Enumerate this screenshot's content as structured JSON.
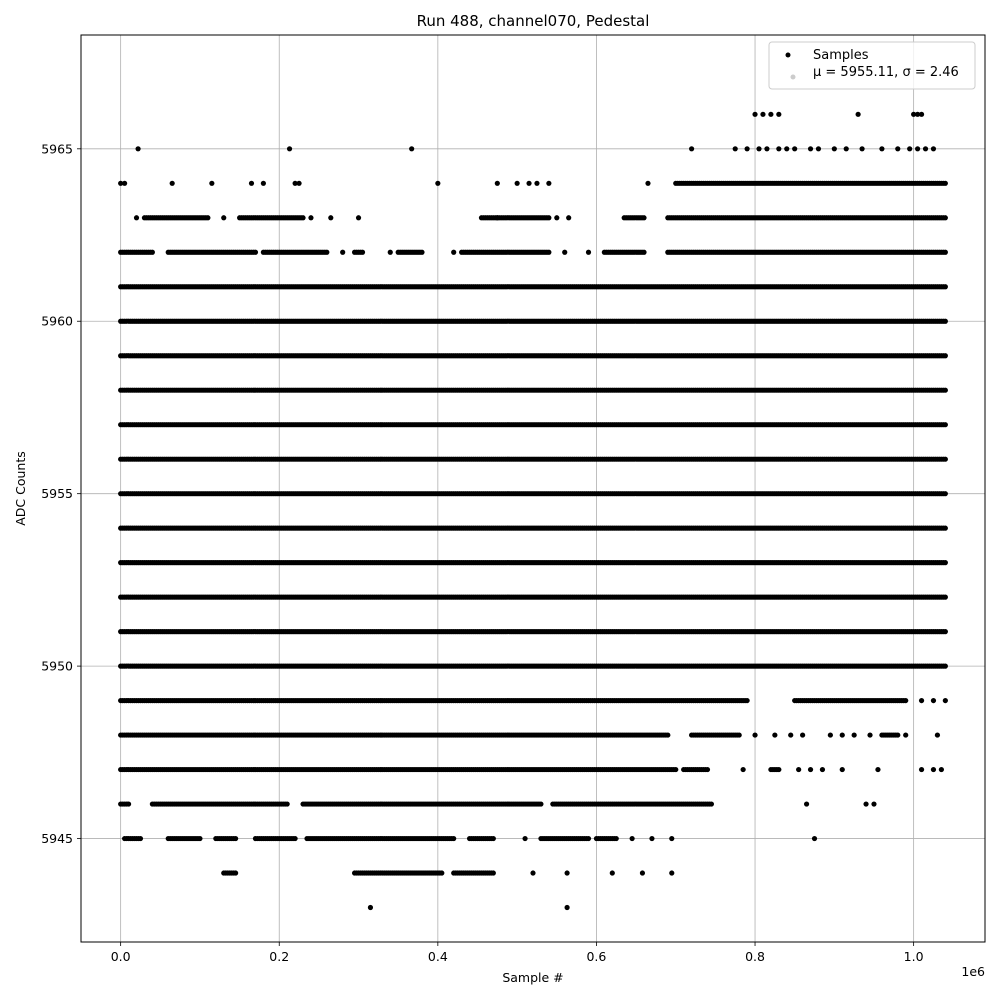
{
  "chart_data": {
    "type": "scatter",
    "title": "Run 488, channel070, Pedestal",
    "xlabel": "Sample #",
    "ylabel": "ADC Counts",
    "x_offset_label": "1e6",
    "x_scale": 1000000,
    "xlim": [
      -50000,
      1090000
    ],
    "ylim": [
      5942.0,
      5968.3
    ],
    "x_ticks": [
      0,
      200000,
      400000,
      600000,
      800000,
      1000000
    ],
    "x_tick_labels": [
      "0.0",
      "0.2",
      "0.4",
      "0.6",
      "0.8",
      "1.0"
    ],
    "y_ticks": [
      5945,
      5950,
      5955,
      5960,
      5965
    ],
    "y_tick_labels": [
      "5945",
      "5950",
      "5955",
      "5960",
      "5965"
    ],
    "grid": true,
    "legend_position": "top-right",
    "legend": {
      "entries": [
        "Samples",
        "$\\mu$ = 5955.11, $\\sigma$ = 2.46"
      ],
      "line1": "Samples",
      "line2": "μ = 5955.11, σ = 2.46"
    },
    "marker_color": "#000000",
    "series": [
      {
        "name": "Samples",
        "x_range": [
          0,
          1040000
        ],
        "levels": [
          {
            "y": 5943,
            "points": [
              315000,
              563000
            ]
          },
          {
            "y": 5944,
            "runs": [
              [
                130000,
                145000
              ],
              [
                295000,
                405000
              ],
              [
                420000,
                470000
              ]
            ],
            "points": [
              520000,
              563000,
              620000,
              658000,
              695000
            ]
          },
          {
            "y": 5945,
            "runs": [
              [
                5000,
                25000
              ],
              [
                60000,
                100000
              ],
              [
                120000,
                145000
              ],
              [
                170000,
                220000
              ],
              [
                235000,
                420000
              ],
              [
                440000,
                470000
              ],
              [
                530000,
                590000
              ],
              [
                600000,
                625000
              ]
            ],
            "points": [
              510000,
              645000,
              670000,
              695000,
              875000
            ]
          },
          {
            "y": 5946,
            "runs": [
              [
                0,
                10000
              ],
              [
                40000,
                210000
              ],
              [
                230000,
                530000
              ],
              [
                545000,
                745000
              ]
            ],
            "points": [
              865000,
              940000,
              950000
            ]
          },
          {
            "y": 5947,
            "runs": [
              [
                0,
                700000
              ],
              [
                710000,
                740000
              ],
              [
                820000,
                830000
              ]
            ],
            "points": [
              785000,
              855000,
              870000,
              885000,
              910000,
              955000,
              1010000,
              1025000,
              1035000
            ]
          },
          {
            "y": 5948,
            "runs": [
              [
                0,
                690000
              ],
              [
                720000,
                780000
              ],
              [
                960000,
                980000
              ]
            ],
            "points": [
              800000,
              825000,
              845000,
              860000,
              895000,
              910000,
              925000,
              945000,
              990000,
              1030000
            ]
          },
          {
            "y": 5949,
            "runs": [
              [
                0,
                790000
              ],
              [
                850000,
                990000
              ]
            ],
            "points": [
              1010000,
              1025000,
              1040000
            ]
          },
          {
            "y": 5950,
            "runs": [
              [
                0,
                1040000
              ]
            ]
          },
          {
            "y": 5951,
            "runs": [
              [
                0,
                1040000
              ]
            ]
          },
          {
            "y": 5952,
            "runs": [
              [
                0,
                1040000
              ]
            ]
          },
          {
            "y": 5953,
            "runs": [
              [
                0,
                1040000
              ]
            ]
          },
          {
            "y": 5954,
            "runs": [
              [
                0,
                1040000
              ]
            ]
          },
          {
            "y": 5955,
            "runs": [
              [
                0,
                1040000
              ]
            ]
          },
          {
            "y": 5956,
            "runs": [
              [
                0,
                1040000
              ]
            ]
          },
          {
            "y": 5957,
            "runs": [
              [
                0,
                1040000
              ]
            ]
          },
          {
            "y": 5958,
            "runs": [
              [
                0,
                1040000
              ]
            ]
          },
          {
            "y": 5959,
            "runs": [
              [
                0,
                1040000
              ]
            ]
          },
          {
            "y": 5960,
            "runs": [
              [
                0,
                1040000
              ]
            ]
          },
          {
            "y": 5961,
            "runs": [
              [
                0,
                1040000
              ]
            ]
          },
          {
            "y": 5962,
            "runs": [
              [
                0,
                40000
              ],
              [
                60000,
                170000
              ],
              [
                180000,
                260000
              ],
              [
                295000,
                305000
              ],
              [
                350000,
                380000
              ],
              [
                430000,
                540000
              ],
              [
                610000,
                660000
              ],
              [
                690000,
                1040000
              ]
            ],
            "points": [
              280000,
              340000,
              420000,
              560000,
              590000
            ]
          },
          {
            "y": 5963,
            "runs": [
              [
                30000,
                110000
              ],
              [
                150000,
                230000
              ],
              [
                455000,
                540000
              ],
              [
                635000,
                660000
              ],
              [
                690000,
                1040000
              ]
            ],
            "points": [
              20000,
              130000,
              240000,
              265000,
              300000,
              475000,
              550000,
              565000
            ]
          },
          {
            "y": 5964,
            "points": [
              0,
              5000,
              65000,
              115000,
              165000,
              180000,
              220000,
              225000,
              400000,
              475000,
              500000,
              515000,
              525000,
              540000,
              665000
            ],
            "runs": [
              [
                700000,
                1040000
              ]
            ]
          },
          {
            "y": 5965,
            "points": [
              22000,
              213000,
              367000,
              720000,
              775000,
              790000,
              805000,
              815000,
              830000,
              840000,
              850000,
              870000,
              880000,
              900000,
              915000,
              935000,
              960000,
              980000,
              995000,
              1005000,
              1015000,
              1025000
            ]
          },
          {
            "y": 5966,
            "points": [
              800000,
              810000,
              820000,
              830000,
              930000,
              1000000,
              1005000,
              1010000
            ]
          }
        ]
      }
    ]
  }
}
